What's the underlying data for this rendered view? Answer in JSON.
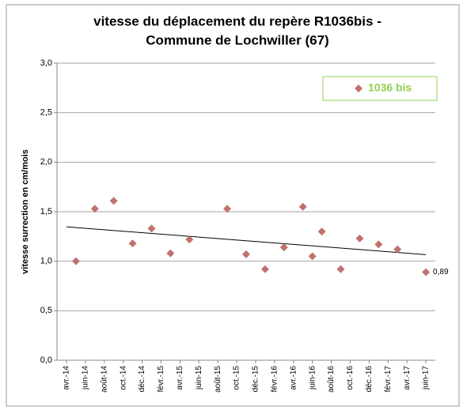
{
  "chart_data": {
    "type": "scatter",
    "title": [
      "vitesse du déplacement du repère R1036bis -",
      "Commune de Lochwiller (67)"
    ],
    "y_label": "vitesse surrection en cm/mois",
    "xlim": [
      "2014-03",
      "2017-07"
    ],
    "xticks": [
      {
        "value": "2014-04",
        "label": "avr.-14"
      },
      {
        "value": "2014-06",
        "label": "juin-14"
      },
      {
        "value": "2014-08",
        "label": "août-14"
      },
      {
        "value": "2014-10",
        "label": "oct.-14"
      },
      {
        "value": "2014-12",
        "label": "déc.-14"
      },
      {
        "value": "2015-02",
        "label": "févr.-15"
      },
      {
        "value": "2015-04",
        "label": "avr.-15"
      },
      {
        "value": "2015-06",
        "label": "juin-15"
      },
      {
        "value": "2015-08",
        "label": "août-15"
      },
      {
        "value": "2015-10",
        "label": "oct.-15"
      },
      {
        "value": "2015-12",
        "label": "déc.-15"
      },
      {
        "value": "2016-02",
        "label": "févr.-16"
      },
      {
        "value": "2016-04",
        "label": "avr.-16"
      },
      {
        "value": "2016-06",
        "label": "juin-16"
      },
      {
        "value": "2016-08",
        "label": "août-16"
      },
      {
        "value": "2016-10",
        "label": "oct.-16"
      },
      {
        "value": "2016-12",
        "label": "déc.-16"
      },
      {
        "value": "2017-02",
        "label": "févr.-17"
      },
      {
        "value": "2017-04",
        "label": "avr.-17"
      },
      {
        "value": "2017-06",
        "label": "juin-17"
      }
    ],
    "ylim": [
      0,
      3
    ],
    "yticks": [
      {
        "value": 0,
        "label": "0,0"
      },
      {
        "value": 0.5,
        "label": "0,5"
      },
      {
        "value": 1,
        "label": "1,0"
      },
      {
        "value": 1.5,
        "label": "1,5"
      },
      {
        "value": 2,
        "label": "2,0"
      },
      {
        "value": 2.5,
        "label": "2,5"
      },
      {
        "value": 3,
        "label": "3,0"
      }
    ],
    "grid": true,
    "trendline": true,
    "legend_position": "top-right",
    "series": [
      {
        "name": "1036 bis",
        "color": "#c0726f",
        "x": [
          "2014-05",
          "2014-07",
          "2014-09",
          "2014-11",
          "2015-01",
          "2015-03",
          "2015-05",
          "2015-09",
          "2015-11",
          "2016-01",
          "2016-03",
          "2016-05",
          "2016-06",
          "2016-07",
          "2016-09",
          "2016-11",
          "2017-01",
          "2017-03",
          "2017-06"
        ],
        "values": [
          1.0,
          1.53,
          1.61,
          1.18,
          1.33,
          1.08,
          1.22,
          1.53,
          1.07,
          0.92,
          1.14,
          1.55,
          1.05,
          1.3,
          0.92,
          1.23,
          1.17,
          1.12,
          0.89
        ],
        "value_labels": [
          null,
          null,
          null,
          null,
          null,
          null,
          null,
          null,
          null,
          null,
          null,
          null,
          null,
          null,
          null,
          null,
          null,
          null,
          "0,89"
        ]
      }
    ]
  }
}
